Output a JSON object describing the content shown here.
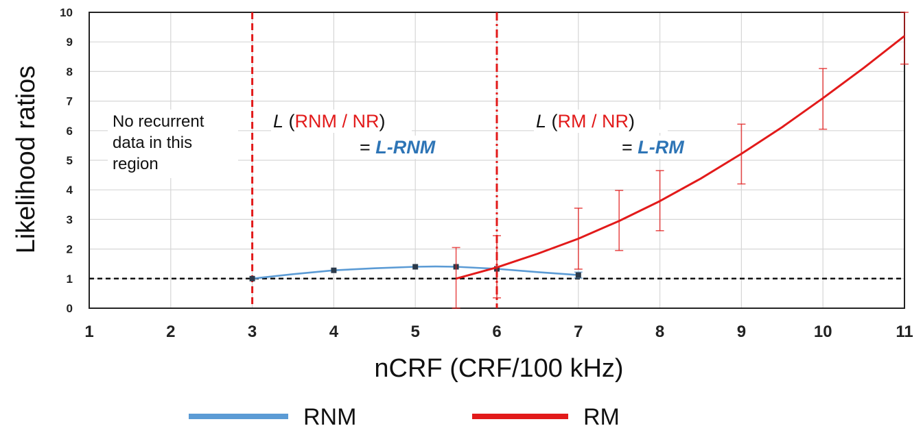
{
  "chart_data": {
    "type": "line",
    "xlabel": "nCRF (CRF/100 kHz)",
    "ylabel": "Likelihood ratios",
    "xlim": [
      1,
      11
    ],
    "ylim": [
      0,
      10
    ],
    "x_ticks": [
      "1",
      "2",
      "3",
      "4",
      "5",
      "6",
      "7",
      "8",
      "9",
      "10",
      "11"
    ],
    "y_ticks": [
      "0",
      "1",
      "2",
      "3",
      "4",
      "5",
      "6",
      "7",
      "8",
      "9",
      "10"
    ],
    "grid": true,
    "reference_line": {
      "y": 1,
      "style": "dashed",
      "color": "#111111"
    },
    "vertical_lines": [
      {
        "x": 3,
        "style": "dashed",
        "color": "#e21a1a"
      },
      {
        "x": 6,
        "style": "dash-dot",
        "color": "#e21a1a"
      }
    ],
    "series": [
      {
        "name": "RNM",
        "color": "#5b9bd5",
        "curve": [
          [
            3,
            1.0
          ],
          [
            3.5,
            1.15
          ],
          [
            4,
            1.28
          ],
          [
            4.5,
            1.35
          ],
          [
            5,
            1.4
          ],
          [
            5.25,
            1.41
          ],
          [
            5.5,
            1.4
          ],
          [
            6,
            1.33
          ],
          [
            6.5,
            1.22
          ],
          [
            7,
            1.12
          ]
        ],
        "markers": [
          [
            3,
            1.0
          ],
          [
            4,
            1.28
          ],
          [
            5,
            1.4
          ],
          [
            5.5,
            1.4
          ],
          [
            6,
            1.33
          ],
          [
            7,
            1.12
          ]
        ],
        "errors": [
          [
            7,
            1.02,
            1.22
          ]
        ]
      },
      {
        "name": "RM",
        "color": "#e21a1a",
        "curve": [
          [
            5.5,
            1.0
          ],
          [
            6,
            1.38
          ],
          [
            6.5,
            1.84
          ],
          [
            7,
            2.35
          ],
          [
            7.5,
            2.95
          ],
          [
            8,
            3.62
          ],
          [
            8.5,
            4.38
          ],
          [
            9,
            5.22
          ],
          [
            9.5,
            6.12
          ],
          [
            10,
            7.1
          ],
          [
            10.5,
            8.12
          ],
          [
            11,
            9.2
          ]
        ],
        "errors": [
          [
            5.5,
            0.0,
            2.05
          ],
          [
            6,
            0.35,
            2.45
          ],
          [
            7,
            1.32,
            3.38
          ],
          [
            7.5,
            1.95,
            3.98
          ],
          [
            8,
            2.62,
            4.65
          ],
          [
            9,
            4.2,
            6.22
          ],
          [
            10,
            6.05,
            8.1
          ],
          [
            11,
            8.25,
            10.0
          ]
        ]
      }
    ],
    "annotations": {
      "no_data": [
        "No recurrent",
        "data in this",
        "region"
      ],
      "rnm_ratio": {
        "l": "L",
        "open": " (",
        "ratio": "RNM / NR",
        "close": ")"
      },
      "rnm_eq": {
        "eq": "= ",
        "name": "L-RNM"
      },
      "rm_ratio": {
        "l": "L",
        "open": " (",
        "ratio": "RM / NR",
        "close": ")"
      },
      "rm_eq": {
        "eq": "= ",
        "name": "L-RM"
      }
    },
    "legend": {
      "position": "bottom",
      "entries": [
        "RNM",
        "RM"
      ]
    }
  }
}
